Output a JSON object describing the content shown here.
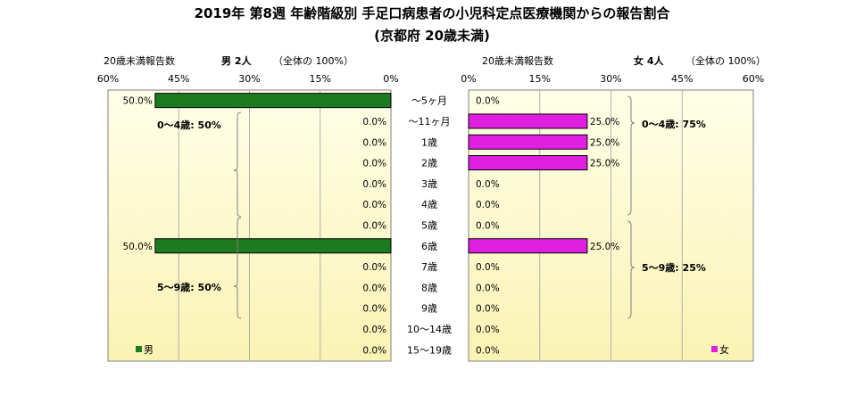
{
  "title": "2019年 第8週 年齢階級別 手足口病患者の小児科定点医療機関からの報告割合",
  "subtitle": "(京都府 20歳未満)",
  "male": {
    "header_label": "20歳未満報告数",
    "header_count": "男  2人",
    "header_total": "（全体の  100%）",
    "legend": "男",
    "color": "#1e7a1e",
    "groups": [
      {
        "label": "0～4歳: 50%"
      },
      {
        "label": "5～9歳: 50%"
      }
    ]
  },
  "female": {
    "header_label": "20歳未満報告数",
    "header_count": "女  4人",
    "header_total": "（全体の  100%）",
    "legend": "女",
    "color": "#e020e0",
    "groups": [
      {
        "label": "0～4歳: 75%"
      },
      {
        "label": "5～9歳: 25%"
      }
    ]
  },
  "chart_data": {
    "type": "bar",
    "orientation": "horizontal-butterfly",
    "categories": [
      "～5ヶ月",
      "～11ヶ月",
      "1歳",
      "2歳",
      "3歳",
      "4歳",
      "5歳",
      "6歳",
      "7歳",
      "8歳",
      "9歳",
      "10～14歳",
      "15～19歳"
    ],
    "series": [
      {
        "name": "男",
        "values": [
          50.0,
          0.0,
          0.0,
          0.0,
          0.0,
          0.0,
          0.0,
          50.0,
          0.0,
          0.0,
          0.0,
          0.0,
          0.0
        ],
        "labels": [
          "50.0%",
          "0.0%",
          "0.0%",
          "0.0%",
          "0.0%",
          "0.0%",
          "0.0%",
          "50.0%",
          "0.0%",
          "0.0%",
          "0.0%",
          "0.0%",
          "0.0%"
        ]
      },
      {
        "name": "女",
        "values": [
          0.0,
          25.0,
          25.0,
          25.0,
          0.0,
          0.0,
          0.0,
          25.0,
          0.0,
          0.0,
          0.0,
          0.0,
          0.0
        ],
        "labels": [
          "0.0%",
          "25.0%",
          "25.0%",
          "25.0%",
          "0.0%",
          "0.0%",
          "0.0%",
          "25.0%",
          "0.0%",
          "0.0%",
          "0.0%",
          "0.0%",
          "0.0%"
        ]
      }
    ],
    "male_ticks": [
      "60%",
      "45%",
      "30%",
      "15%",
      "0%"
    ],
    "female_ticks": [
      "0%",
      "15%",
      "30%",
      "45%",
      "60%"
    ],
    "xlim": [
      0,
      60
    ]
  }
}
